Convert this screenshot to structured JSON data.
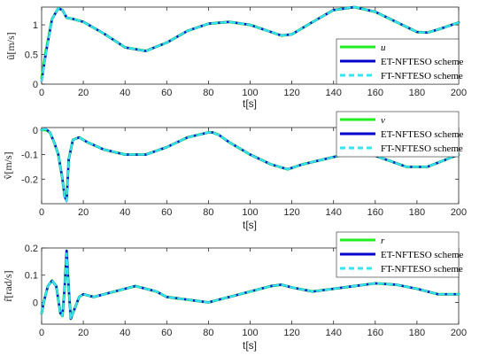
{
  "chart_data": [
    {
      "type": "line",
      "xlabel": "t[s]",
      "ylabel": "û[m/s]",
      "xlim": [
        0,
        200
      ],
      "ylim": [
        0,
        1.3
      ],
      "xticks": [
        0,
        20,
        40,
        60,
        80,
        100,
        120,
        140,
        160,
        180,
        200
      ],
      "yticks": [
        0,
        0.5,
        1
      ],
      "ytick_labels": [
        "0",
        "0.5",
        "1"
      ],
      "legend_position": "right",
      "series": [
        {
          "name": "u",
          "color": "#21ee21",
          "style": "solid",
          "x": [
            0,
            2,
            5,
            8,
            10,
            12,
            15,
            20,
            30,
            40,
            50,
            60,
            70,
            80,
            90,
            100,
            110,
            115,
            120,
            130,
            140,
            150,
            160,
            170,
            180,
            185,
            190,
            200
          ],
          "y": [
            0.1,
            0.55,
            1.1,
            1.28,
            1.25,
            1.12,
            1.1,
            1.05,
            0.85,
            0.62,
            0.56,
            0.7,
            0.9,
            1.02,
            1.05,
            1.0,
            0.88,
            0.82,
            0.84,
            1.05,
            1.25,
            1.3,
            1.22,
            1.05,
            0.88,
            0.87,
            0.92,
            1.04
          ]
        },
        {
          "name": "ET-NFTESO scheme",
          "color": "#0000cc",
          "style": "solid",
          "x": [
            0,
            2,
            5,
            8,
            10,
            12,
            15,
            20,
            30,
            40,
            50,
            60,
            70,
            80,
            90,
            100,
            110,
            115,
            120,
            130,
            140,
            150,
            160,
            170,
            180,
            185,
            190,
            200
          ],
          "y": [
            0.05,
            0.5,
            1.1,
            1.28,
            1.25,
            1.12,
            1.1,
            1.05,
            0.85,
            0.62,
            0.56,
            0.7,
            0.9,
            1.02,
            1.05,
            1.0,
            0.88,
            0.82,
            0.84,
            1.05,
            1.25,
            1.3,
            1.22,
            1.05,
            0.88,
            0.87,
            0.92,
            1.04
          ]
        },
        {
          "name": "FT-NFTESO scheme",
          "color": "#33e6f0",
          "style": "dashed",
          "x": [
            0,
            2,
            5,
            8,
            10,
            12,
            15,
            20,
            30,
            40,
            50,
            60,
            70,
            80,
            90,
            100,
            110,
            115,
            120,
            130,
            140,
            150,
            160,
            170,
            180,
            185,
            190,
            200
          ],
          "y": [
            0.05,
            0.5,
            1.1,
            1.28,
            1.25,
            1.12,
            1.1,
            1.05,
            0.85,
            0.62,
            0.56,
            0.7,
            0.9,
            1.02,
            1.05,
            1.0,
            0.88,
            0.82,
            0.84,
            1.05,
            1.25,
            1.3,
            1.22,
            1.05,
            0.88,
            0.87,
            0.92,
            1.04
          ]
        }
      ]
    },
    {
      "type": "line",
      "xlabel": "t[s]",
      "ylabel": "v̂[m/s]",
      "xlim": [
        0,
        200
      ],
      "ylim": [
        -0.3,
        0.01
      ],
      "xticks": [
        0,
        20,
        40,
        60,
        80,
        100,
        120,
        140,
        160,
        180,
        200
      ],
      "yticks": [
        0,
        -0.1,
        -0.2
      ],
      "ytick_labels": [
        "0",
        "-0.1",
        "-0.2"
      ],
      "legend_position": "right",
      "series": [
        {
          "name": "v",
          "color": "#21ee21",
          "style": "solid",
          "x": [
            0,
            2,
            4,
            6,
            8,
            10,
            11,
            12,
            13,
            15,
            18,
            22,
            30,
            40,
            50,
            60,
            70,
            80,
            82,
            85,
            90,
            100,
            110,
            118,
            125,
            135,
            145,
            155,
            165,
            175,
            185,
            200
          ],
          "y": [
            0,
            0,
            -0.01,
            -0.05,
            -0.1,
            -0.2,
            -0.27,
            -0.28,
            -0.12,
            -0.04,
            -0.03,
            -0.05,
            -0.08,
            -0.1,
            -0.1,
            -0.07,
            -0.03,
            -0.01,
            -0.01,
            -0.02,
            -0.05,
            -0.1,
            -0.14,
            -0.16,
            -0.14,
            -0.12,
            -0.1,
            -0.09,
            -0.12,
            -0.15,
            -0.15,
            -0.1
          ]
        },
        {
          "name": "ET-NFTESO scheme",
          "color": "#0000cc",
          "style": "solid",
          "x": [
            0,
            2,
            4,
            6,
            8,
            10,
            11,
            12,
            13,
            15,
            18,
            22,
            30,
            40,
            50,
            60,
            70,
            80,
            82,
            85,
            90,
            100,
            110,
            118,
            125,
            135,
            145,
            155,
            165,
            175,
            185,
            200
          ],
          "y": [
            0,
            0.005,
            -0.01,
            -0.05,
            -0.1,
            -0.2,
            -0.27,
            -0.29,
            -0.12,
            -0.04,
            -0.03,
            -0.05,
            -0.08,
            -0.1,
            -0.1,
            -0.07,
            -0.03,
            -0.01,
            -0.01,
            -0.02,
            -0.05,
            -0.1,
            -0.14,
            -0.16,
            -0.14,
            -0.12,
            -0.1,
            -0.09,
            -0.12,
            -0.15,
            -0.15,
            -0.1
          ]
        },
        {
          "name": "FT-NFTESO scheme",
          "color": "#33e6f0",
          "style": "dashed",
          "x": [
            0,
            2,
            4,
            6,
            8,
            10,
            11,
            12,
            13,
            15,
            18,
            22,
            30,
            40,
            50,
            60,
            70,
            80,
            82,
            85,
            90,
            100,
            110,
            118,
            125,
            135,
            145,
            155,
            165,
            175,
            185,
            200
          ],
          "y": [
            0,
            0.005,
            -0.01,
            -0.05,
            -0.1,
            -0.2,
            -0.27,
            -0.29,
            -0.12,
            -0.04,
            -0.03,
            -0.05,
            -0.08,
            -0.1,
            -0.1,
            -0.07,
            -0.03,
            -0.01,
            -0.01,
            -0.02,
            -0.05,
            -0.1,
            -0.14,
            -0.16,
            -0.14,
            -0.12,
            -0.1,
            -0.09,
            -0.12,
            -0.15,
            -0.15,
            -0.1
          ]
        }
      ]
    },
    {
      "type": "line",
      "xlabel": "t[s]",
      "ylabel": "r̂[rad/s]",
      "xlim": [
        0,
        200
      ],
      "ylim": [
        -0.08,
        0.2
      ],
      "xticks": [
        0,
        20,
        40,
        60,
        80,
        100,
        120,
        140,
        160,
        180,
        200
      ],
      "yticks": [
        0,
        0.1,
        0.2
      ],
      "ytick_labels": [
        "0",
        "0.1",
        "0.2"
      ],
      "legend_position": "right",
      "series": [
        {
          "name": "r",
          "color": "#21ee21",
          "style": "solid",
          "x": [
            0,
            1,
            3,
            5,
            7,
            8,
            9,
            10,
            11,
            12,
            13,
            14,
            16,
            18,
            20,
            25,
            30,
            35,
            40,
            45,
            50,
            55,
            60,
            70,
            80,
            90,
            100,
            110,
            115,
            120,
            130,
            140,
            150,
            160,
            170,
            180,
            190,
            200
          ],
          "y": [
            -0.04,
            0,
            0.06,
            0.08,
            0.06,
            0.01,
            -0.04,
            -0.05,
            0.05,
            0.19,
            0.05,
            -0.06,
            -0.02,
            0.02,
            0.03,
            0.02,
            0.03,
            0.04,
            0.05,
            0.06,
            0.05,
            0.04,
            0.02,
            0.01,
            0.0,
            0.02,
            0.04,
            0.06,
            0.065,
            0.055,
            0.04,
            0.05,
            0.06,
            0.07,
            0.065,
            0.05,
            0.03,
            0.03
          ]
        },
        {
          "name": "ET-NFTESO scheme",
          "color": "#0000cc",
          "style": "solid",
          "x": [
            0,
            1,
            3,
            5,
            7,
            8,
            9,
            10,
            11,
            12,
            13,
            14,
            16,
            18,
            20,
            25,
            30,
            35,
            40,
            45,
            50,
            55,
            60,
            70,
            80,
            90,
            100,
            110,
            115,
            120,
            130,
            140,
            150,
            160,
            170,
            180,
            190,
            200
          ],
          "y": [
            -0.04,
            0,
            0.06,
            0.08,
            0.06,
            0.01,
            -0.04,
            -0.05,
            0.05,
            0.19,
            0.05,
            -0.06,
            -0.02,
            0.02,
            0.03,
            0.02,
            0.03,
            0.04,
            0.05,
            0.06,
            0.05,
            0.04,
            0.02,
            0.01,
            0.0,
            0.02,
            0.04,
            0.06,
            0.065,
            0.055,
            0.04,
            0.05,
            0.06,
            0.07,
            0.065,
            0.05,
            0.03,
            0.03
          ]
        },
        {
          "name": "FT-NFTESO scheme",
          "color": "#33e6f0",
          "style": "dashed",
          "x": [
            0,
            1,
            3,
            5,
            7,
            8,
            9,
            10,
            11,
            12,
            13,
            14,
            16,
            18,
            20,
            25,
            30,
            35,
            40,
            45,
            50,
            55,
            60,
            70,
            80,
            90,
            100,
            110,
            115,
            120,
            130,
            140,
            150,
            160,
            170,
            180,
            190,
            200
          ],
          "y": [
            -0.04,
            0,
            0.06,
            0.08,
            0.06,
            0.01,
            -0.04,
            -0.05,
            0.05,
            0.18,
            0.05,
            -0.06,
            -0.02,
            0.02,
            0.03,
            0.02,
            0.03,
            0.04,
            0.05,
            0.06,
            0.05,
            0.04,
            0.02,
            0.01,
            0.0,
            0.02,
            0.04,
            0.06,
            0.065,
            0.055,
            0.04,
            0.05,
            0.06,
            0.07,
            0.065,
            0.05,
            0.03,
            0.03
          ]
        }
      ]
    }
  ]
}
